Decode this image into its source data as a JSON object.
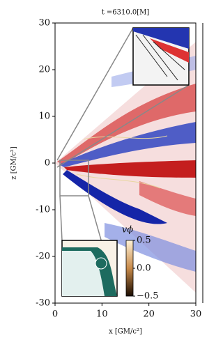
{
  "chart_data": {
    "type": "heatmap",
    "title": "t =6310.0[M]",
    "xlabel": "x [GM/c²]",
    "ylabel": "z [GM/c²]",
    "xlim": [
      0,
      30
    ],
    "xticks": [
      0,
      10,
      20,
      30
    ],
    "ylim": [
      -30,
      30
    ],
    "yticks": [
      -30,
      -20,
      -10,
      0,
      10,
      20,
      30
    ],
    "colorbar": {
      "label": "vϕ",
      "clim": [
        -0.5,
        0.5
      ],
      "ticks": [
        0.5,
        {
          "value": 0,
          "label": "0.0"
        },
        {
          "value": -0.5,
          "label": "−0.5"
        }
      ]
    }
  }
}
